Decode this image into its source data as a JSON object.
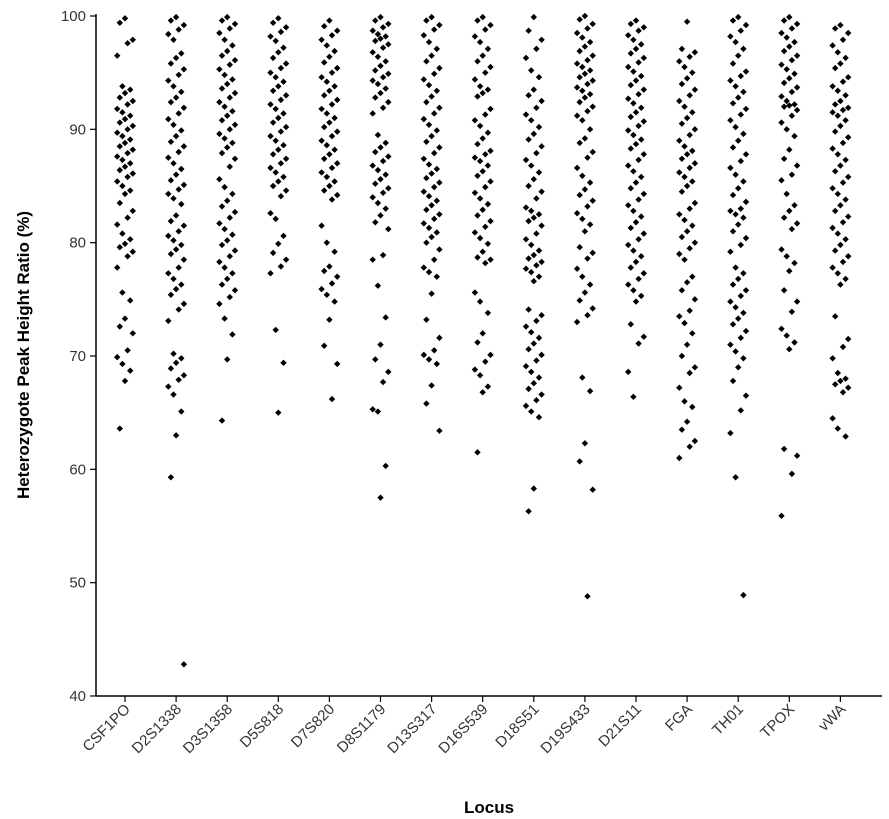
{
  "chart_data": {
    "type": "scatter",
    "title": "",
    "xlabel": "Locus",
    "ylabel": "Heterozygote Peak Height Ratio (%)",
    "ylim": [
      40,
      100
    ],
    "yticks": [
      40,
      50,
      60,
      70,
      80,
      90,
      100
    ],
    "grid": false,
    "legend": "none",
    "marker_color": "#000000",
    "categories": [
      "CSF1PO",
      "D2S1338",
      "D3S1358",
      "D5S818",
      "D7S820",
      "D8S1179",
      "D13S317",
      "D16S539",
      "D18S51",
      "D19S433",
      "D21S11",
      "FGA",
      "TH01",
      "TPOX",
      "vWA"
    ],
    "series": [
      {
        "category": "CSF1PO",
        "values": [
          99.8,
          99.4,
          97.9,
          97.6,
          96.5,
          93.8,
          93.5,
          93.2,
          92.8,
          92.5,
          92.2,
          91.8,
          91.5,
          91.2,
          90.9,
          90.6,
          90.3,
          90.0,
          89.7,
          89.4,
          89.1,
          88.8,
          88.5,
          88.2,
          87.9,
          87.6,
          87.3,
          87.0,
          86.7,
          86.4,
          86.1,
          85.8,
          85.4,
          85.0,
          84.6,
          84.3,
          83.5,
          82.8,
          82.2,
          81.6,
          80.8,
          80.3,
          79.9,
          79.6,
          79.2,
          78.8,
          77.8,
          75.6,
          74.9,
          73.3,
          72.6,
          72.0,
          70.5,
          69.9,
          69.3,
          68.7,
          67.8,
          63.6
        ]
      },
      {
        "category": "D2S1338",
        "values": [
          99.9,
          99.6,
          99.2,
          98.8,
          98.4,
          97.9,
          96.7,
          96.3,
          95.8,
          95.3,
          94.8,
          94.3,
          93.8,
          93.3,
          92.8,
          92.4,
          91.9,
          91.4,
          90.9,
          90.4,
          89.9,
          89.4,
          88.9,
          88.5,
          88.0,
          87.5,
          87.0,
          86.5,
          86.0,
          85.5,
          85.1,
          84.7,
          84.3,
          83.9,
          83.4,
          82.4,
          81.9,
          81.5,
          81.0,
          80.6,
          80.2,
          79.8,
          79.4,
          79.0,
          78.5,
          77.8,
          77.3,
          76.8,
          76.3,
          75.9,
          75.4,
          74.6,
          74.1,
          73.1,
          70.2,
          69.8,
          69.4,
          68.9,
          68.3,
          67.9,
          67.3,
          66.6,
          65.1,
          63.0,
          59.3,
          42.8
        ]
      },
      {
        "category": "D3S1358",
        "values": [
          99.9,
          99.6,
          99.3,
          98.9,
          98.5,
          97.9,
          97.4,
          96.9,
          96.5,
          96.1,
          95.7,
          95.3,
          94.8,
          94.4,
          94.0,
          93.6,
          93.2,
          92.8,
          92.4,
          92.0,
          91.6,
          91.2,
          90.8,
          90.4,
          90.0,
          89.6,
          89.2,
          88.8,
          88.4,
          87.9,
          87.4,
          86.7,
          85.6,
          84.9,
          84.3,
          83.7,
          83.2,
          82.7,
          82.2,
          81.7,
          81.2,
          80.7,
          80.2,
          79.8,
          79.3,
          78.8,
          78.3,
          77.8,
          77.3,
          76.8,
          76.3,
          75.8,
          75.2,
          74.6,
          73.3,
          71.9,
          69.7,
          64.3
        ]
      },
      {
        "category": "D5S818",
        "values": [
          99.8,
          99.4,
          99.0,
          98.6,
          98.2,
          97.8,
          97.2,
          96.8,
          96.3,
          95.8,
          95.4,
          95.0,
          94.6,
          94.2,
          93.8,
          93.4,
          93.0,
          92.6,
          92.2,
          91.8,
          91.4,
          91.0,
          90.6,
          90.2,
          89.8,
          89.4,
          89.0,
          88.6,
          88.2,
          87.8,
          87.4,
          87.0,
          86.6,
          86.2,
          85.8,
          85.4,
          85.0,
          84.6,
          84.1,
          82.6,
          82.1,
          80.6,
          79.9,
          79.1,
          78.5,
          77.9,
          77.3,
          72.3,
          69.4,
          65.0
        ]
      },
      {
        "category": "D7S820",
        "values": [
          99.6,
          99.1,
          98.7,
          98.3,
          97.9,
          97.4,
          96.9,
          96.4,
          95.9,
          95.4,
          95.0,
          94.6,
          94.2,
          93.8,
          93.4,
          93.0,
          92.6,
          92.2,
          91.8,
          91.4,
          91.0,
          90.6,
          90.2,
          89.8,
          89.4,
          89.0,
          88.6,
          88.2,
          87.8,
          87.4,
          87.0,
          86.6,
          86.2,
          85.8,
          85.4,
          85.0,
          84.6,
          84.2,
          83.8,
          81.5,
          80.0,
          79.2,
          77.9,
          77.5,
          77.0,
          76.4,
          75.9,
          75.4,
          74.8,
          73.2,
          70.9,
          69.3,
          66.2
        ]
      },
      {
        "category": "D8S1179",
        "values": [
          99.9,
          99.6,
          99.3,
          99.0,
          98.7,
          98.4,
          98.2,
          98.0,
          97.8,
          97.5,
          97.2,
          96.8,
          96.4,
          96.0,
          95.6,
          95.2,
          94.9,
          94.6,
          94.3,
          94.0,
          93.6,
          93.2,
          92.8,
          92.4,
          91.9,
          91.4,
          89.5,
          88.8,
          88.4,
          88.0,
          87.6,
          87.2,
          86.8,
          86.4,
          86.0,
          85.6,
          85.2,
          84.8,
          84.4,
          84.0,
          83.5,
          83.0,
          82.4,
          81.8,
          81.2,
          78.9,
          78.5,
          76.2,
          73.4,
          71.0,
          69.7,
          68.6,
          67.7,
          65.3,
          65.1,
          60.3,
          57.5
        ]
      },
      {
        "category": "D13S317",
        "values": [
          99.9,
          99.6,
          99.2,
          98.8,
          98.3,
          97.7,
          97.1,
          96.5,
          96.0,
          95.4,
          94.9,
          94.4,
          93.9,
          93.4,
          92.9,
          92.4,
          91.9,
          91.4,
          90.9,
          90.4,
          89.9,
          89.4,
          88.9,
          88.4,
          87.9,
          87.4,
          86.9,
          86.5,
          86.1,
          85.7,
          85.3,
          84.9,
          84.5,
          84.1,
          83.7,
          83.3,
          82.9,
          82.5,
          82.1,
          81.7,
          81.3,
          80.9,
          80.5,
          80.0,
          79.4,
          78.5,
          77.8,
          77.4,
          77.0,
          75.5,
          73.2,
          71.6,
          70.5,
          70.1,
          69.7,
          69.3,
          67.4,
          65.8,
          63.4
        ]
      },
      {
        "category": "D16S539",
        "values": [
          99.9,
          99.6,
          99.2,
          98.8,
          98.2,
          97.7,
          97.1,
          96.5,
          96.0,
          95.5,
          95.0,
          94.4,
          93.8,
          93.5,
          93.2,
          92.9,
          91.8,
          91.3,
          90.8,
          90.3,
          89.7,
          89.2,
          88.7,
          88.1,
          87.8,
          87.5,
          87.2,
          86.8,
          86.3,
          85.9,
          85.4,
          84.9,
          84.4,
          83.9,
          83.4,
          82.9,
          82.4,
          81.9,
          81.4,
          80.9,
          80.4,
          79.9,
          79.2,
          78.7,
          78.5,
          78.2,
          75.6,
          74.8,
          73.8,
          72.0,
          71.2,
          70.1,
          69.5,
          68.8,
          68.3,
          67.3,
          66.8,
          61.5
        ]
      },
      {
        "category": "D18S51",
        "values": [
          99.9,
          98.7,
          97.9,
          97.1,
          96.3,
          95.2,
          94.6,
          93.5,
          93.0,
          92.5,
          91.9,
          91.3,
          90.8,
          90.2,
          89.6,
          89.1,
          88.5,
          87.9,
          87.3,
          86.8,
          86.2,
          85.6,
          85.0,
          84.5,
          83.9,
          83.1,
          82.8,
          82.5,
          82.2,
          81.9,
          81.5,
          80.8,
          80.3,
          79.8,
          79.3,
          78.9,
          78.6,
          78.3,
          78.0,
          77.7,
          77.4,
          77.0,
          76.6,
          74.1,
          73.6,
          73.1,
          72.6,
          72.1,
          71.6,
          71.1,
          70.6,
          70.1,
          69.6,
          69.1,
          68.6,
          68.1,
          67.6,
          67.1,
          66.6,
          66.1,
          65.6,
          65.1,
          64.6,
          58.3,
          56.3
        ]
      },
      {
        "category": "D19S433",
        "values": [
          100.0,
          99.7,
          99.3,
          98.9,
          98.5,
          98.1,
          97.7,
          97.3,
          96.9,
          96.5,
          96.1,
          95.8,
          95.5,
          95.2,
          94.9,
          94.6,
          94.3,
          94.0,
          93.7,
          93.4,
          93.1,
          92.8,
          92.4,
          92.0,
          91.6,
          91.2,
          90.8,
          90.0,
          89.2,
          88.8,
          88.0,
          87.5,
          86.6,
          85.9,
          85.3,
          84.7,
          84.2,
          83.7,
          83.2,
          82.6,
          82.1,
          81.6,
          81.0,
          79.6,
          79.1,
          78.6,
          77.7,
          77.0,
          76.3,
          75.6,
          74.9,
          74.2,
          73.6,
          73.0,
          68.1,
          66.9,
          62.3,
          60.7,
          58.2,
          48.8
        ]
      },
      {
        "category": "D21S11",
        "values": [
          99.6,
          99.3,
          99.0,
          98.7,
          98.3,
          97.9,
          97.5,
          97.1,
          96.7,
          96.3,
          95.9,
          95.5,
          95.1,
          94.7,
          94.3,
          93.9,
          93.5,
          93.1,
          92.7,
          92.3,
          91.9,
          91.5,
          91.1,
          90.7,
          90.3,
          89.9,
          89.5,
          89.1,
          88.7,
          88.3,
          87.8,
          87.3,
          86.8,
          86.3,
          85.8,
          85.3,
          84.8,
          84.3,
          83.8,
          83.3,
          82.8,
          82.3,
          81.8,
          81.3,
          80.8,
          80.3,
          79.8,
          79.3,
          78.8,
          78.3,
          77.8,
          77.3,
          76.8,
          76.3,
          75.8,
          75.3,
          74.8,
          72.8,
          71.7,
          71.1,
          68.6,
          66.4
        ]
      },
      {
        "category": "FGA",
        "values": [
          99.5,
          97.1,
          96.8,
          96.4,
          96.0,
          95.5,
          95.0,
          94.5,
          94.0,
          93.5,
          93.0,
          92.5,
          92.0,
          91.5,
          91.0,
          90.5,
          90.0,
          89.5,
          89.0,
          88.5,
          88.1,
          87.8,
          87.4,
          87.0,
          86.6,
          86.2,
          85.8,
          85.4,
          85.0,
          84.5,
          83.5,
          83.0,
          82.5,
          82.0,
          81.5,
          81.0,
          80.5,
          80.0,
          79.5,
          79.0,
          78.5,
          77.0,
          76.5,
          75.8,
          75.0,
          74.0,
          73.5,
          72.9,
          72.0,
          71.0,
          70.0,
          69.0,
          68.5,
          67.2,
          66.0,
          65.5,
          64.2,
          63.5,
          62.5,
          62.0,
          61.0
        ]
      },
      {
        "category": "TH01",
        "values": [
          99.9,
          99.6,
          99.2,
          98.7,
          98.2,
          97.7,
          97.1,
          96.5,
          95.8,
          95.1,
          94.7,
          94.3,
          93.8,
          93.3,
          92.8,
          92.3,
          91.8,
          91.3,
          90.8,
          90.2,
          89.6,
          89.0,
          88.4,
          87.8,
          87.2,
          86.6,
          86.0,
          85.4,
          84.8,
          84.2,
          83.6,
          83.0,
          82.8,
          82.5,
          82.2,
          81.6,
          81.0,
          80.4,
          79.8,
          79.2,
          77.8,
          77.3,
          76.8,
          76.3,
          75.8,
          75.3,
          74.8,
          74.3,
          73.8,
          73.3,
          72.8,
          72.2,
          71.6,
          71.0,
          70.4,
          69.8,
          69.0,
          67.8,
          66.5,
          65.2,
          63.2,
          59.3,
          48.9
        ]
      },
      {
        "category": "TPOX",
        "values": [
          99.9,
          99.6,
          99.3,
          98.9,
          98.5,
          98.1,
          97.7,
          97.3,
          96.9,
          96.5,
          96.1,
          95.7,
          95.3,
          94.9,
          94.5,
          94.1,
          93.7,
          93.3,
          92.9,
          92.5,
          92.2,
          92.1,
          92.0,
          91.7,
          91.2,
          90.6,
          90.0,
          89.4,
          88.2,
          87.4,
          86.8,
          86.0,
          85.5,
          84.3,
          83.3,
          82.8,
          82.2,
          81.7,
          81.2,
          79.4,
          78.8,
          78.2,
          77.5,
          75.8,
          74.8,
          73.9,
          72.4,
          71.8,
          71.2,
          70.6,
          61.8,
          61.2,
          59.6,
          55.9
        ]
      },
      {
        "category": "vWA",
        "values": [
          99.2,
          98.9,
          98.5,
          97.9,
          97.4,
          96.8,
          96.3,
          95.8,
          95.4,
          94.6,
          94.2,
          93.8,
          93.4,
          93.0,
          92.5,
          92.2,
          91.9,
          91.7,
          91.5,
          91.2,
          90.8,
          90.3,
          89.8,
          89.3,
          88.8,
          88.3,
          87.8,
          87.3,
          86.8,
          86.3,
          85.8,
          85.3,
          84.8,
          84.3,
          83.8,
          83.3,
          82.8,
          82.3,
          81.8,
          81.3,
          80.8,
          80.3,
          79.8,
          79.3,
          78.8,
          78.3,
          77.8,
          77.3,
          76.8,
          76.3,
          73.5,
          71.5,
          70.8,
          69.8,
          68.5,
          68.0,
          67.8,
          67.5,
          67.2,
          66.8,
          64.5,
          63.6,
          62.9
        ]
      }
    ]
  }
}
